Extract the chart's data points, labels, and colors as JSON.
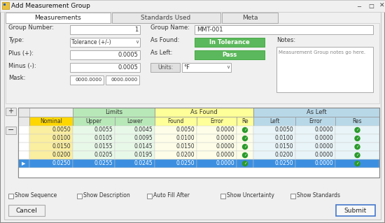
{
  "title": "Add Measurement Group",
  "bg_color": "#e8e8e8",
  "dialog_bg": "#f0f0f0",
  "tab_active": "Measurements",
  "tabs": [
    "Measurements",
    "Standards Used",
    "Meta"
  ],
  "form_labels_left": [
    "Group Number:",
    "Type:",
    "Plus (+):",
    "Minus (-):",
    "Mask:"
  ],
  "group_number_val": "1",
  "type_val": "Tolerance (+/-)",
  "plus_val": "0.0005",
  "minus_val": "0.0005",
  "mask_val1": "0000.0000",
  "mask_val2": "0000.0000",
  "group_name_val": "MMT-001",
  "as_found_val": "In Tolerance",
  "as_left_val": "Pass",
  "units_val": "°F",
  "notes_label": "Notes:",
  "notes_text": "Measurement Group notes go here.",
  "table_group1_label": "Limits",
  "table_group2_label": "As Found",
  "table_group3_label": "As Left",
  "col_headers": [
    "Nominal",
    "Upper",
    "Lower",
    "Found",
    "Error",
    "Re",
    "Left",
    "Error",
    "Res"
  ],
  "group1_bg": "#b8e8b8",
  "group2_bg": "#ffff99",
  "group3_bg": "#b8d8e8",
  "nominal_bg": "#ffd700",
  "row_data": [
    [
      "0.0050",
      "0.0055",
      "0.0045",
      "0.0050",
      "0.0000",
      "0.0050",
      "0.0000"
    ],
    [
      "0.0100",
      "0.0105",
      "0.0095",
      "0.0100",
      "0.0000",
      "0.0100",
      "0.0000"
    ],
    [
      "0.0150",
      "0.0155",
      "0.0145",
      "0.0150",
      "0.0000",
      "0.0150",
      "0.0000"
    ],
    [
      "0.0200",
      "0.0205",
      "0.0195",
      "0.0200",
      "0.0000",
      "0.0200",
      "0.0000"
    ],
    [
      "0.0250",
      "0.0255",
      "0.0245",
      "0.0250",
      "0.0000",
      "0.0250",
      "0.0000"
    ]
  ],
  "selected_row": 4,
  "sel_bg": "#3c8fe0",
  "checkboxes": [
    "Show Sequence",
    "Show Description",
    "Auto Fill After",
    "Show Uncertainty",
    "Show Standards"
  ],
  "btn_cancel": "Cancel",
  "btn_submit": "Submit",
  "white": "#ffffff",
  "green_btn": "#5cb85c",
  "text_dark": "#222222",
  "text_mid": "#555555",
  "border": "#aaaaaa",
  "border_dark": "#888888"
}
